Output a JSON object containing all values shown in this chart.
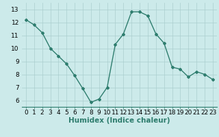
{
  "x": [
    0,
    1,
    2,
    3,
    4,
    5,
    6,
    7,
    8,
    9,
    10,
    11,
    12,
    13,
    14,
    15,
    16,
    17,
    18,
    19,
    20,
    21,
    22,
    23
  ],
  "y": [
    12.2,
    11.8,
    11.2,
    10.0,
    9.4,
    8.8,
    7.9,
    6.9,
    5.85,
    6.1,
    7.0,
    10.3,
    11.1,
    12.8,
    12.8,
    12.5,
    11.1,
    10.4,
    8.55,
    8.4,
    7.8,
    8.2,
    8.0,
    7.6
  ],
  "line_color": "#2e7d6e",
  "bg_color": "#cceaea",
  "grid_color": "#aacece",
  "xlabel": "Humidex (Indice chaleur)",
  "ylim": [
    5.5,
    13.5
  ],
  "xlim": [
    -0.5,
    23.5
  ],
  "yticks": [
    6,
    7,
    8,
    9,
    10,
    11,
    12,
    13
  ],
  "xticks": [
    0,
    1,
    2,
    3,
    4,
    5,
    6,
    7,
    8,
    9,
    10,
    11,
    12,
    13,
    14,
    15,
    16,
    17,
    18,
    19,
    20,
    21,
    22,
    23
  ],
  "marker": "D",
  "marker_size": 2.0,
  "line_width": 1.0,
  "font_size": 6.5,
  "xlabel_font_size": 7.5
}
